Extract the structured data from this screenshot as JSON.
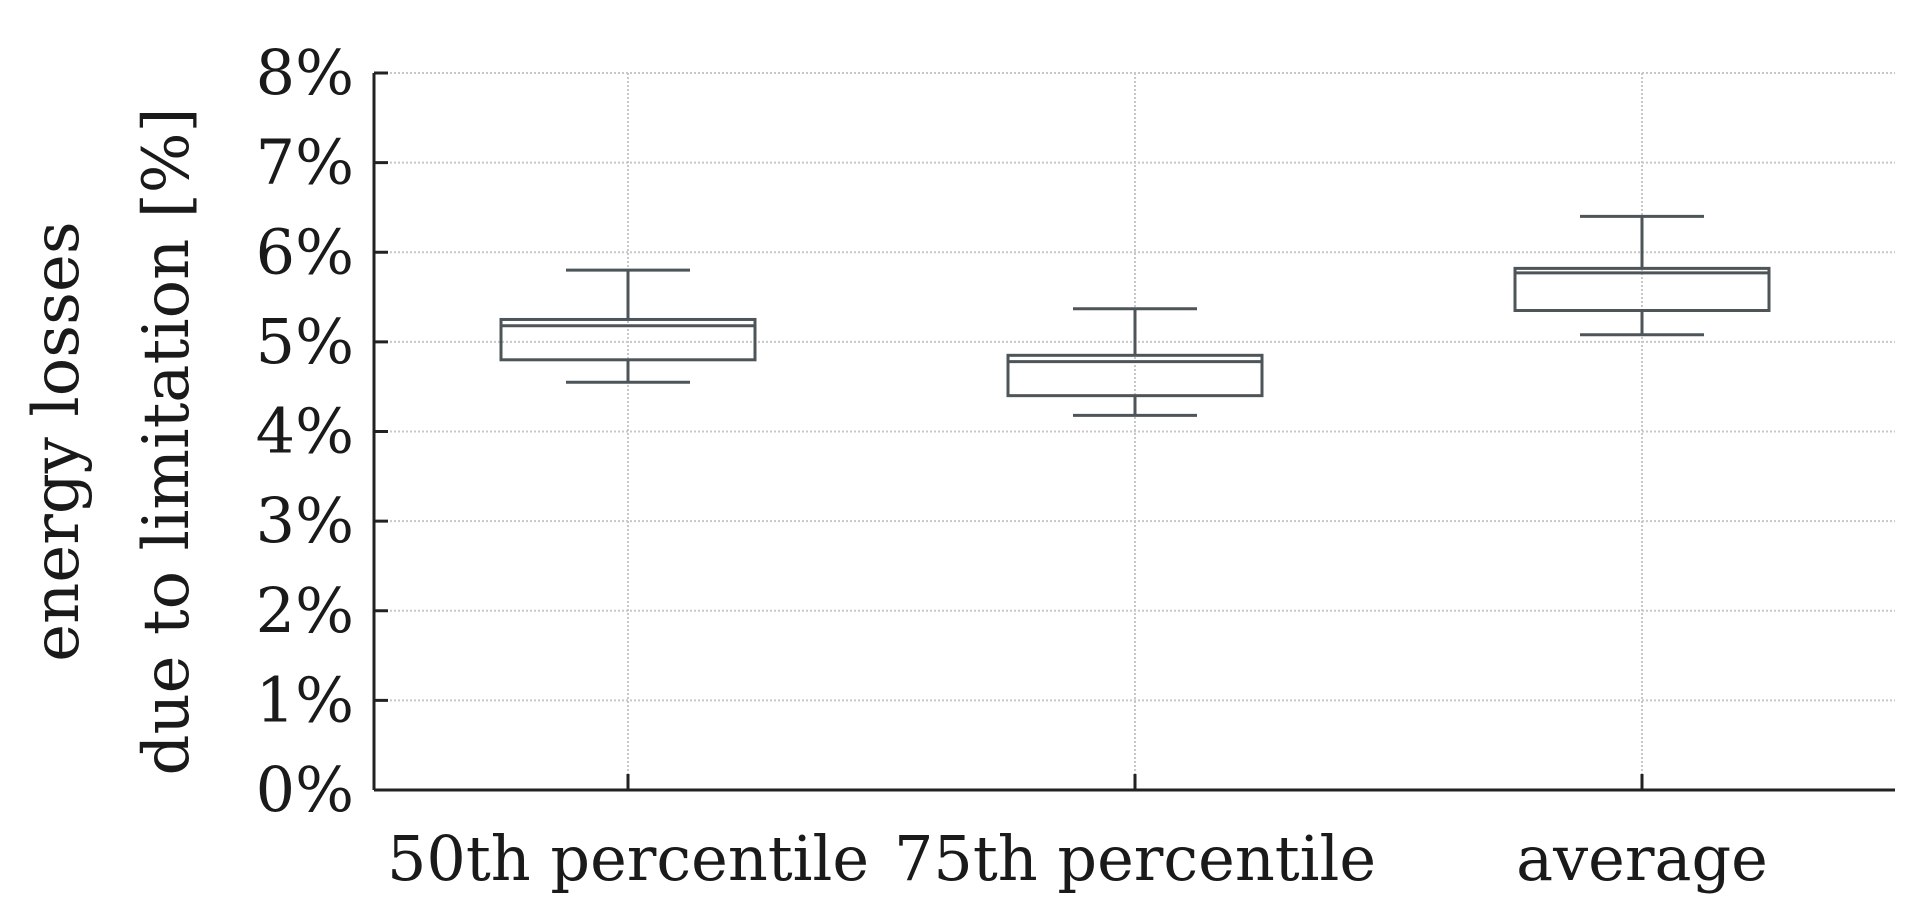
{
  "chart_data": {
    "type": "box",
    "title": "",
    "ylabel_lines": [
      "energy losses",
      "due to limitation [%]"
    ],
    "xlabel": "",
    "ylim": [
      0,
      8
    ],
    "yticks": [
      "0%",
      "1%",
      "2%",
      "3%",
      "4%",
      "5%",
      "6%",
      "7%",
      "8%"
    ],
    "grid": true,
    "categories": [
      "50th percentile",
      "75th percentile",
      "average"
    ],
    "boxes": [
      {
        "whisker_low": 4.55,
        "q1": 4.8,
        "median": 5.18,
        "q3": 5.25,
        "whisker_high": 5.8
      },
      {
        "whisker_low": 4.18,
        "q1": 4.4,
        "median": 4.78,
        "q3": 4.85,
        "whisker_high": 5.37
      },
      {
        "whisker_low": 5.08,
        "q1": 5.35,
        "median": 5.77,
        "q3": 5.82,
        "whisker_high": 6.4
      }
    ],
    "colors": {
      "box": "#4d5559",
      "axis": "#222222",
      "grid": "#c8c8c8"
    }
  }
}
